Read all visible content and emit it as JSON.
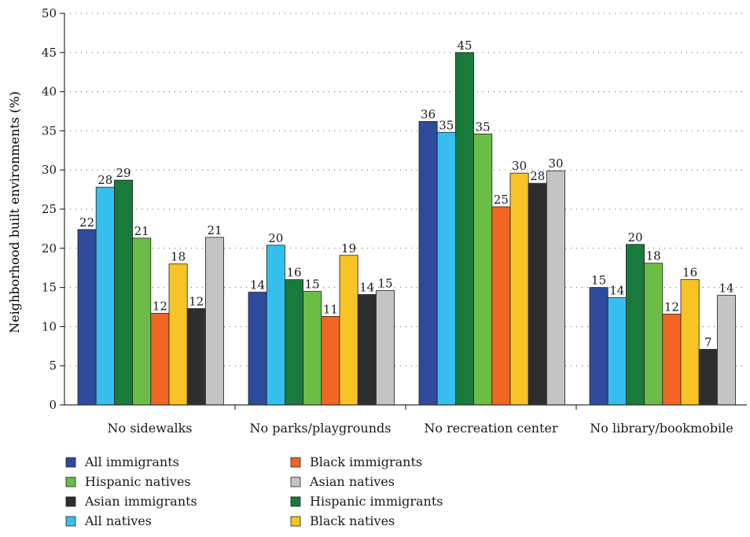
{
  "chart_data": {
    "type": "bar",
    "title": "",
    "xlabel": "",
    "ylabel": "Neighborhood built environments (%)",
    "ylim": [
      0,
      50
    ],
    "yticks": [
      0,
      5,
      10,
      15,
      20,
      25,
      30,
      35,
      40,
      45,
      50
    ],
    "grid": "horizontal dotted",
    "legend_position": "bottom",
    "categories": [
      "No sidewalks",
      "No parks/playgrounds",
      "No recreation center",
      "No library/bookmobile"
    ],
    "series": [
      {
        "name": "All immigrants",
        "color": "#2e4a9c",
        "values": [
          22.4,
          14.4,
          36.2,
          15.0
        ],
        "labels": [
          "22",
          "14",
          "36",
          "15"
        ]
      },
      {
        "name": "All natives",
        "color": "#36bfee",
        "values": [
          27.8,
          20.4,
          34.8,
          13.7
        ],
        "labels": [
          "28",
          "20",
          "35",
          "14"
        ]
      },
      {
        "name": "Hispanic immigrants",
        "color": "#1a7a3c",
        "values": [
          28.7,
          16.0,
          45.0,
          20.5
        ],
        "labels": [
          "29",
          "16",
          "45",
          "20"
        ]
      },
      {
        "name": "Hispanic natives",
        "color": "#6cbd45",
        "values": [
          21.3,
          14.5,
          34.6,
          18.1
        ],
        "labels": [
          "21",
          "15",
          "35",
          "18"
        ]
      },
      {
        "name": "Black immigrants",
        "color": "#f26522",
        "values": [
          11.7,
          11.3,
          25.3,
          11.6
        ],
        "labels": [
          "12",
          "11",
          "25",
          "12"
        ]
      },
      {
        "name": "Black natives",
        "color": "#f7c325",
        "values": [
          18.0,
          19.1,
          29.6,
          16.0
        ],
        "labels": [
          "18",
          "19",
          "30",
          "16"
        ]
      },
      {
        "name": "Asian immigrants",
        "color": "#2e2e2e",
        "values": [
          12.3,
          14.1,
          28.3,
          7.1
        ],
        "labels": [
          "12",
          "14",
          "28",
          "7"
        ]
      },
      {
        "name": "Asian natives",
        "color": "#c4c4c4",
        "values": [
          21.4,
          14.6,
          29.9,
          14.0
        ],
        "labels": [
          "21",
          "15",
          "30",
          "14"
        ]
      }
    ],
    "legend_order": [
      "All immigrants",
      "Black immigrants",
      "Hispanic natives",
      "Asian natives",
      "Asian immigrants",
      "Hispanic immigrants",
      "All natives",
      "Black natives"
    ]
  }
}
